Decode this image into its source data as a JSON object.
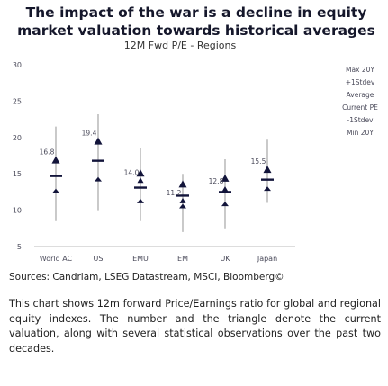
{
  "title": "The impact of the war is a decline in equity market valuation towards historical averages",
  "chart_data": {
    "type": "range",
    "title": "12M Fwd P/E - Regions",
    "categories": [
      "World AC",
      "US",
      "EMU",
      "EM",
      "UK",
      "Japan"
    ],
    "series": [
      {
        "name": "Max 20Y",
        "values": [
          21.5,
          23.2,
          18.5,
          15.0,
          17.0,
          19.7
        ]
      },
      {
        "name": "+1Stdev",
        "values": [
          16.8,
          19.4,
          15.0,
          13.5,
          14.3,
          15.5
        ]
      },
      {
        "name": "Average",
        "values": [
          14.7,
          16.8,
          13.1,
          12.0,
          12.5,
          14.2
        ]
      },
      {
        "name": "Current PE",
        "values": [
          16.8,
          19.4,
          14.0,
          11.2,
          12.8,
          15.5
        ]
      },
      {
        "name": "-1Stdev",
        "values": [
          12.6,
          14.2,
          11.2,
          10.5,
          10.8,
          12.9
        ]
      },
      {
        "name": "Min 20Y",
        "values": [
          8.5,
          10.0,
          8.5,
          7.0,
          7.5,
          11.0
        ]
      }
    ],
    "data_labels": [
      "16.8",
      "19.4",
      "14.0",
      "11.2",
      "12.8",
      "15.5"
    ],
    "ylim": [
      5,
      30
    ],
    "yticks": [
      5,
      10,
      15,
      20,
      25,
      30
    ],
    "grid": false,
    "legend_position": "right",
    "colors": {
      "marker": "#12143a",
      "label": "#4a4a5a"
    }
  },
  "sources": "Sources: Candriam, LSEG Datastream, MSCI, Bloomberg©",
  "description": "This chart shows 12m forward Price/Earnings ratio for global and regional equity indexes. The number and the triangle denote the current valuation, along with several statistical observations over the past two decades."
}
